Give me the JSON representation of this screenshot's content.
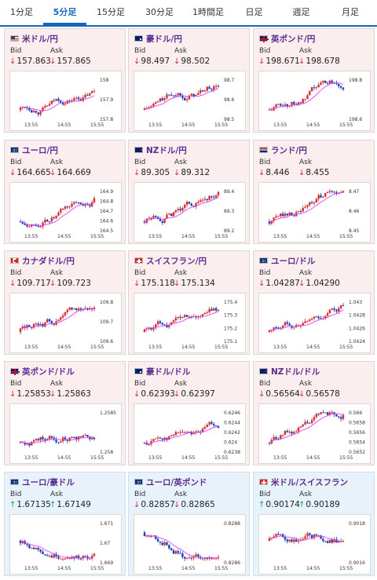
{
  "tabs": [
    {
      "label": "1分足",
      "active": false
    },
    {
      "label": "5分足",
      "active": true
    },
    {
      "label": "15分足",
      "active": false
    },
    {
      "label": "30分足",
      "active": false
    },
    {
      "label": "1時間足",
      "active": false
    },
    {
      "label": "日足",
      "active": false
    },
    {
      "label": "週足",
      "active": false
    },
    {
      "label": "月足",
      "active": false
    }
  ],
  "labels": {
    "bid": "Bid",
    "ask": "Ask"
  },
  "colors": {
    "up_candle": "#d32f2f",
    "down_candle": "#1a3fb5",
    "ma_line": "#e040fb",
    "down_arrow": "#d32f2f",
    "up_arrow": "#1a9e3c",
    "title": "#5b2c8f"
  },
  "x_ticks": [
    "13:55",
    "14:55",
    "15:55"
  ],
  "pairs": [
    {
      "name": "米ドル/円",
      "flag": "us",
      "bid": "157.863",
      "ask": "157.865",
      "dir": "down",
      "theme": "red",
      "chart_data": {
        "type": "candlestick",
        "y_ticks": [
          "158",
          "157.9",
          "157.8"
        ],
        "ylim": [
          157.75,
          158.05
        ],
        "trend": "up"
      }
    },
    {
      "name": "豪ドル/円",
      "flag": "au",
      "bid": "98.497",
      "ask": "98.502",
      "dir": "down",
      "theme": "red",
      "chart_data": {
        "type": "candlestick",
        "y_ticks": [
          "98.7",
          "98.6",
          "98.5"
        ],
        "ylim": [
          98.42,
          98.75
        ],
        "trend": "up"
      }
    },
    {
      "name": "英ポンド/円",
      "flag": "gb",
      "bid": "198.671",
      "ask": "198.678",
      "dir": "down",
      "theme": "red",
      "chart_data": {
        "type": "candlestick",
        "y_ticks": [
          "198.8",
          "198.6"
        ],
        "ylim": [
          198.52,
          198.86
        ],
        "trend": "up"
      }
    },
    {
      "name": "ユーロ/円",
      "flag": "eu",
      "bid": "164.665",
      "ask": "164.669",
      "dir": "down",
      "theme": "red",
      "chart_data": {
        "type": "candlestick",
        "y_ticks": [
          "164.9",
          "164.8",
          "164.7",
          "164.6",
          "164.5"
        ],
        "ylim": [
          164.45,
          164.95
        ],
        "trend": "up"
      }
    },
    {
      "name": "NZドル/円",
      "flag": "nz",
      "bid": "89.305",
      "ask": "89.312",
      "dir": "down",
      "theme": "red",
      "chart_data": {
        "type": "candlestick",
        "y_ticks": [
          "89.4",
          "89.3",
          "89.2"
        ],
        "ylim": [
          89.15,
          89.45
        ],
        "trend": "up"
      }
    },
    {
      "name": "ランド/円",
      "flag": "za",
      "bid": "8.446",
      "ask": "8.455",
      "dir": "down",
      "theme": "red",
      "chart_data": {
        "type": "candlestick",
        "y_ticks": [
          "8.47",
          "8.46",
          "8.45"
        ],
        "ylim": [
          8.437,
          8.476
        ],
        "trend": "up"
      }
    },
    {
      "name": "カナダドル/円",
      "flag": "ca",
      "bid": "109.717",
      "ask": "109.723",
      "dir": "down",
      "theme": "red",
      "chart_data": {
        "type": "candlestick",
        "y_ticks": [
          "109.8",
          "109.7",
          "109.6"
        ],
        "ylim": [
          109.57,
          109.88
        ],
        "trend": "up"
      }
    },
    {
      "name": "スイスフラン/円",
      "flag": "ch",
      "bid": "175.118",
      "ask": "175.134",
      "dir": "down",
      "theme": "red",
      "chart_data": {
        "type": "candlestick",
        "y_ticks": [
          "175.4",
          "175.3",
          "175.2",
          "175.1"
        ],
        "ylim": [
          175.05,
          175.45
        ],
        "trend": "up"
      }
    },
    {
      "name": "ユーロ/ドル",
      "flag": "eu",
      "bid": "1.04287",
      "ask": "1.04290",
      "dir": "down",
      "theme": "red",
      "chart_data": {
        "type": "candlestick",
        "y_ticks": [
          "1.043",
          "1.0428",
          "1.0426",
          "1.0424"
        ],
        "ylim": [
          1.0423,
          1.0432
        ],
        "trend": "up"
      }
    },
    {
      "name": "英ポンド/ドル",
      "flag": "gb",
      "bid": "1.25853",
      "ask": "1.25863",
      "dir": "down",
      "theme": "red",
      "chart_data": {
        "type": "candlestick",
        "y_ticks": [
          "1.2585",
          "1.258"
        ],
        "ylim": [
          1.2576,
          1.2591
        ],
        "trend": "up"
      }
    },
    {
      "name": "豪ドル/ドル",
      "flag": "au",
      "bid": "0.62393",
      "ask": "0.62397",
      "dir": "down",
      "theme": "red",
      "chart_data": {
        "type": "candlestick",
        "y_ticks": [
          "0.6246",
          "0.6244",
          "0.6242",
          "0.624",
          "0.6238"
        ],
        "ylim": [
          0.6237,
          0.6247
        ],
        "trend": "up"
      }
    },
    {
      "name": "NZドル/ドル",
      "flag": "nz",
      "bid": "0.56564",
      "ask": "0.56578",
      "dir": "down",
      "theme": "red",
      "chart_data": {
        "type": "candlestick",
        "y_ticks": [
          "0.566",
          "0.5658",
          "0.5656",
          "0.5654",
          "0.5652"
        ],
        "ylim": [
          0.5651,
          0.5661
        ],
        "trend": "up"
      }
    },
    {
      "name": "ユーロ/豪ドル",
      "flag": "eu",
      "bid": "1.67135",
      "ask": "1.67149",
      "dir": "up",
      "theme": "blue",
      "chart_data": {
        "type": "candlestick",
        "y_ticks": [
          "1.671",
          "1.67",
          "1.669"
        ],
        "ylim": [
          1.6688,
          1.6715
        ],
        "trend": "flat"
      }
    },
    {
      "name": "ユーロ/英ポンド",
      "flag": "eu",
      "bid": "0.82857",
      "ask": "0.82865",
      "dir": "down",
      "theme": "blue",
      "chart_data": {
        "type": "candlestick",
        "y_ticks": [
          "0.8288",
          "0.8286"
        ],
        "ylim": [
          0.82845,
          0.82885
        ],
        "trend": "down"
      }
    },
    {
      "name": "米ドル/スイスフラン",
      "flag": "ch",
      "bid": "0.90174",
      "ask": "0.90189",
      "dir": "up",
      "theme": "blue",
      "chart_data": {
        "type": "candlestick",
        "y_ticks": [
          "0.9018",
          "0.9016"
        ],
        "ylim": [
          0.9014,
          0.9019
        ],
        "trend": "flat"
      }
    }
  ]
}
